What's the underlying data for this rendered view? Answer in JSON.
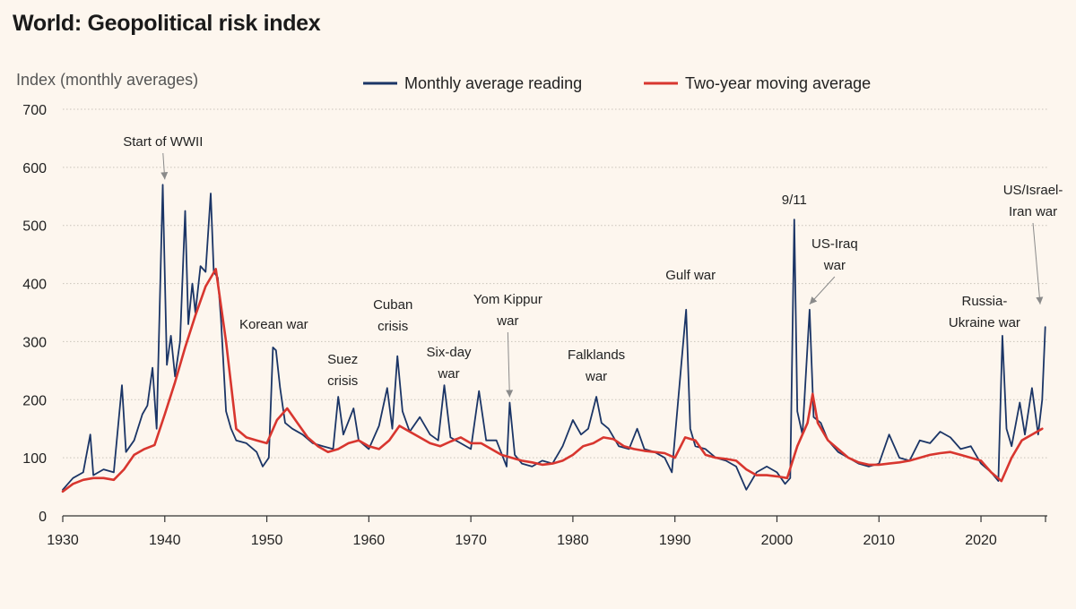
{
  "title": "World: Geopolitical risk index",
  "colors": {
    "background": "#fdf6ee",
    "monthly": "#1b3566",
    "moving_average": "#d8362f",
    "annotation_arrow": "#8a8a8a"
  },
  "chart_data": {
    "type": "line",
    "title": "World: Geopolitical risk index",
    "ylabel": "Index (monthly averages)",
    "xlabel": "",
    "xlim": [
      1930,
      2026.5
    ],
    "ylim": [
      0,
      700
    ],
    "x_ticks": [
      1930,
      1940,
      1950,
      1960,
      1970,
      1980,
      1990,
      2000,
      2010,
      2020
    ],
    "y_ticks": [
      0,
      100,
      200,
      300,
      400,
      500,
      600,
      700
    ],
    "grid": true,
    "legend_position": "top",
    "series": [
      {
        "name": "Monthly average reading",
        "color": "#1b3566",
        "points": [
          [
            1930,
            45
          ],
          [
            1931,
            65
          ],
          [
            1932,
            75
          ],
          [
            1932.7,
            140
          ],
          [
            1933,
            70
          ],
          [
            1934,
            80
          ],
          [
            1935,
            75
          ],
          [
            1935.8,
            225
          ],
          [
            1936.2,
            110
          ],
          [
            1937,
            130
          ],
          [
            1937.8,
            175
          ],
          [
            1938.3,
            190
          ],
          [
            1938.8,
            255
          ],
          [
            1939.2,
            150
          ],
          [
            1939.8,
            570
          ],
          [
            1940.2,
            260
          ],
          [
            1940.6,
            310
          ],
          [
            1941,
            240
          ],
          [
            1941.5,
            300
          ],
          [
            1942,
            525
          ],
          [
            1942.3,
            330
          ],
          [
            1942.7,
            400
          ],
          [
            1943,
            350
          ],
          [
            1943.5,
            430
          ],
          [
            1944,
            420
          ],
          [
            1944.5,
            555
          ],
          [
            1944.8,
            420
          ],
          [
            1945.2,
            410
          ],
          [
            1945.5,
            340
          ],
          [
            1946,
            180
          ],
          [
            1946.5,
            150
          ],
          [
            1947,
            130
          ],
          [
            1948,
            125
          ],
          [
            1949,
            110
          ],
          [
            1949.6,
            85
          ],
          [
            1950.2,
            100
          ],
          [
            1950.6,
            290
          ],
          [
            1950.9,
            285
          ],
          [
            1951.3,
            220
          ],
          [
            1951.8,
            160
          ],
          [
            1952.5,
            150
          ],
          [
            1953.5,
            140
          ],
          [
            1954.5,
            125
          ],
          [
            1955.5,
            120
          ],
          [
            1956.5,
            115
          ],
          [
            1957,
            205
          ],
          [
            1957.5,
            140
          ],
          [
            1958.5,
            185
          ],
          [
            1959,
            130
          ],
          [
            1960,
            115
          ],
          [
            1961,
            155
          ],
          [
            1961.8,
            220
          ],
          [
            1962.3,
            150
          ],
          [
            1962.8,
            275
          ],
          [
            1963.3,
            180
          ],
          [
            1964,
            145
          ],
          [
            1965,
            170
          ],
          [
            1966,
            140
          ],
          [
            1966.8,
            130
          ],
          [
            1967.4,
            225
          ],
          [
            1968,
            135
          ],
          [
            1969,
            125
          ],
          [
            1970,
            115
          ],
          [
            1970.8,
            215
          ],
          [
            1971.5,
            130
          ],
          [
            1972.5,
            130
          ],
          [
            1973.5,
            85
          ],
          [
            1973.8,
            195
          ],
          [
            1974.3,
            105
          ],
          [
            1975,
            90
          ],
          [
            1976,
            85
          ],
          [
            1977,
            95
          ],
          [
            1978,
            90
          ],
          [
            1979,
            120
          ],
          [
            1980,
            165
          ],
          [
            1980.8,
            140
          ],
          [
            1981.5,
            150
          ],
          [
            1982.3,
            205
          ],
          [
            1982.8,
            160
          ],
          [
            1983.5,
            150
          ],
          [
            1984.5,
            120
          ],
          [
            1985.5,
            115
          ],
          [
            1986.3,
            150
          ],
          [
            1987,
            115
          ],
          [
            1988,
            110
          ],
          [
            1989,
            100
          ],
          [
            1989.7,
            75
          ],
          [
            1990.6,
            255
          ],
          [
            1991.1,
            355
          ],
          [
            1991.5,
            150
          ],
          [
            1992,
            120
          ],
          [
            1993,
            115
          ],
          [
            1994,
            100
          ],
          [
            1995,
            95
          ],
          [
            1996,
            85
          ],
          [
            1997,
            45
          ],
          [
            1998,
            75
          ],
          [
            1999,
            85
          ],
          [
            2000,
            75
          ],
          [
            2000.8,
            55
          ],
          [
            2001.3,
            65
          ],
          [
            2001.7,
            510
          ],
          [
            2002,
            180
          ],
          [
            2002.5,
            140
          ],
          [
            2003.2,
            355
          ],
          [
            2003.6,
            170
          ],
          [
            2004.3,
            160
          ],
          [
            2005,
            130
          ],
          [
            2006,
            110
          ],
          [
            2007,
            100
          ],
          [
            2008,
            90
          ],
          [
            2009,
            85
          ],
          [
            2010,
            90
          ],
          [
            2011,
            140
          ],
          [
            2012,
            100
          ],
          [
            2013,
            95
          ],
          [
            2014,
            130
          ],
          [
            2015,
            125
          ],
          [
            2016,
            145
          ],
          [
            2017,
            135
          ],
          [
            2018,
            115
          ],
          [
            2019,
            120
          ],
          [
            2020,
            90
          ],
          [
            2021,
            75
          ],
          [
            2021.7,
            60
          ],
          [
            2022.1,
            310
          ],
          [
            2022.5,
            150
          ],
          [
            2023,
            120
          ],
          [
            2023.8,
            195
          ],
          [
            2024.3,
            140
          ],
          [
            2025,
            220
          ],
          [
            2025.6,
            140
          ],
          [
            2026,
            200
          ],
          [
            2026.3,
            325
          ]
        ]
      },
      {
        "name": "Two-year moving average",
        "color": "#d8362f",
        "points": [
          [
            1930,
            42
          ],
          [
            1931,
            55
          ],
          [
            1932,
            62
          ],
          [
            1933,
            65
          ],
          [
            1934,
            65
          ],
          [
            1935,
            62
          ],
          [
            1936,
            80
          ],
          [
            1937,
            105
          ],
          [
            1938,
            115
          ],
          [
            1939,
            122
          ],
          [
            1940,
            175
          ],
          [
            1941,
            230
          ],
          [
            1942,
            290
          ],
          [
            1943,
            345
          ],
          [
            1944,
            395
          ],
          [
            1945,
            425
          ],
          [
            1946,
            300
          ],
          [
            1947,
            150
          ],
          [
            1948,
            135
          ],
          [
            1949,
            130
          ],
          [
            1950,
            125
          ],
          [
            1951,
            165
          ],
          [
            1952,
            185
          ],
          [
            1953,
            160
          ],
          [
            1954,
            135
          ],
          [
            1955,
            120
          ],
          [
            1956,
            110
          ],
          [
            1957,
            115
          ],
          [
            1958,
            125
          ],
          [
            1959,
            130
          ],
          [
            1960,
            120
          ],
          [
            1961,
            115
          ],
          [
            1962,
            130
          ],
          [
            1963,
            155
          ],
          [
            1964,
            145
          ],
          [
            1965,
            135
          ],
          [
            1966,
            125
          ],
          [
            1967,
            120
          ],
          [
            1968,
            128
          ],
          [
            1969,
            135
          ],
          [
            1970,
            125
          ],
          [
            1971,
            125
          ],
          [
            1972,
            115
          ],
          [
            1973,
            105
          ],
          [
            1974,
            100
          ],
          [
            1975,
            95
          ],
          [
            1976,
            92
          ],
          [
            1977,
            88
          ],
          [
            1978,
            90
          ],
          [
            1979,
            95
          ],
          [
            1980,
            105
          ],
          [
            1981,
            120
          ],
          [
            1982,
            125
          ],
          [
            1983,
            135
          ],
          [
            1984,
            132
          ],
          [
            1985,
            120
          ],
          [
            1986,
            115
          ],
          [
            1987,
            112
          ],
          [
            1988,
            110
          ],
          [
            1989,
            108
          ],
          [
            1990,
            100
          ],
          [
            1991,
            135
          ],
          [
            1992,
            130
          ],
          [
            1993,
            105
          ],
          [
            1994,
            100
          ],
          [
            1995,
            98
          ],
          [
            1996,
            95
          ],
          [
            1997,
            80
          ],
          [
            1998,
            70
          ],
          [
            1999,
            70
          ],
          [
            2000,
            68
          ],
          [
            2001,
            65
          ],
          [
            2002,
            120
          ],
          [
            2003,
            160
          ],
          [
            2003.5,
            210
          ],
          [
            2004,
            160
          ],
          [
            2005,
            130
          ],
          [
            2006,
            115
          ],
          [
            2007,
            100
          ],
          [
            2008,
            92
          ],
          [
            2009,
            88
          ],
          [
            2010,
            88
          ],
          [
            2011,
            90
          ],
          [
            2012,
            92
          ],
          [
            2013,
            95
          ],
          [
            2014,
            100
          ],
          [
            2015,
            105
          ],
          [
            2016,
            108
          ],
          [
            2017,
            110
          ],
          [
            2018,
            105
          ],
          [
            2019,
            100
          ],
          [
            2020,
            95
          ],
          [
            2021,
            75
          ],
          [
            2022,
            60
          ],
          [
            2023,
            100
          ],
          [
            2024,
            130
          ],
          [
            2025,
            140
          ],
          [
            2026,
            150
          ]
        ]
      }
    ],
    "annotations": [
      {
        "lines": [
          "Start of WWII"
        ],
        "x": 1940,
        "y": 570,
        "arrow": true
      },
      {
        "lines": [
          "Korean war"
        ],
        "x": 1952,
        "y": 290,
        "arrow": false
      },
      {
        "lines": [
          "Suez",
          "crisis"
        ],
        "x": 1957,
        "y": 205,
        "arrow": false
      },
      {
        "lines": [
          "Cuban",
          "crisis"
        ],
        "x": 1962.8,
        "y": 275,
        "arrow": false
      },
      {
        "lines": [
          "Six-day",
          "war"
        ],
        "x": 1967.4,
        "y": 225,
        "arrow": false
      },
      {
        "lines": [
          "Yom Kippur",
          "war"
        ],
        "x": 1973.8,
        "y": 195,
        "arrow": true
      },
      {
        "lines": [
          "Falklands",
          "war"
        ],
        "x": 1982.3,
        "y": 205,
        "arrow": false
      },
      {
        "lines": [
          "Gulf war"
        ],
        "x": 1991.1,
        "y": 355,
        "arrow": false
      },
      {
        "lines": [
          "9/11"
        ],
        "x": 2001.7,
        "y": 510,
        "arrow": false
      },
      {
        "lines": [
          "US-Iraq",
          "war"
        ],
        "x": 2003.2,
        "y": 355,
        "arrow": true
      },
      {
        "lines": [
          "Russia-",
          "Ukraine war"
        ],
        "x": 2022.1,
        "y": 310,
        "arrow": false
      },
      {
        "lines": [
          "US/Israel-",
          "Iran war"
        ],
        "x": 2025.8,
        "y": 355,
        "arrow": true
      }
    ]
  }
}
